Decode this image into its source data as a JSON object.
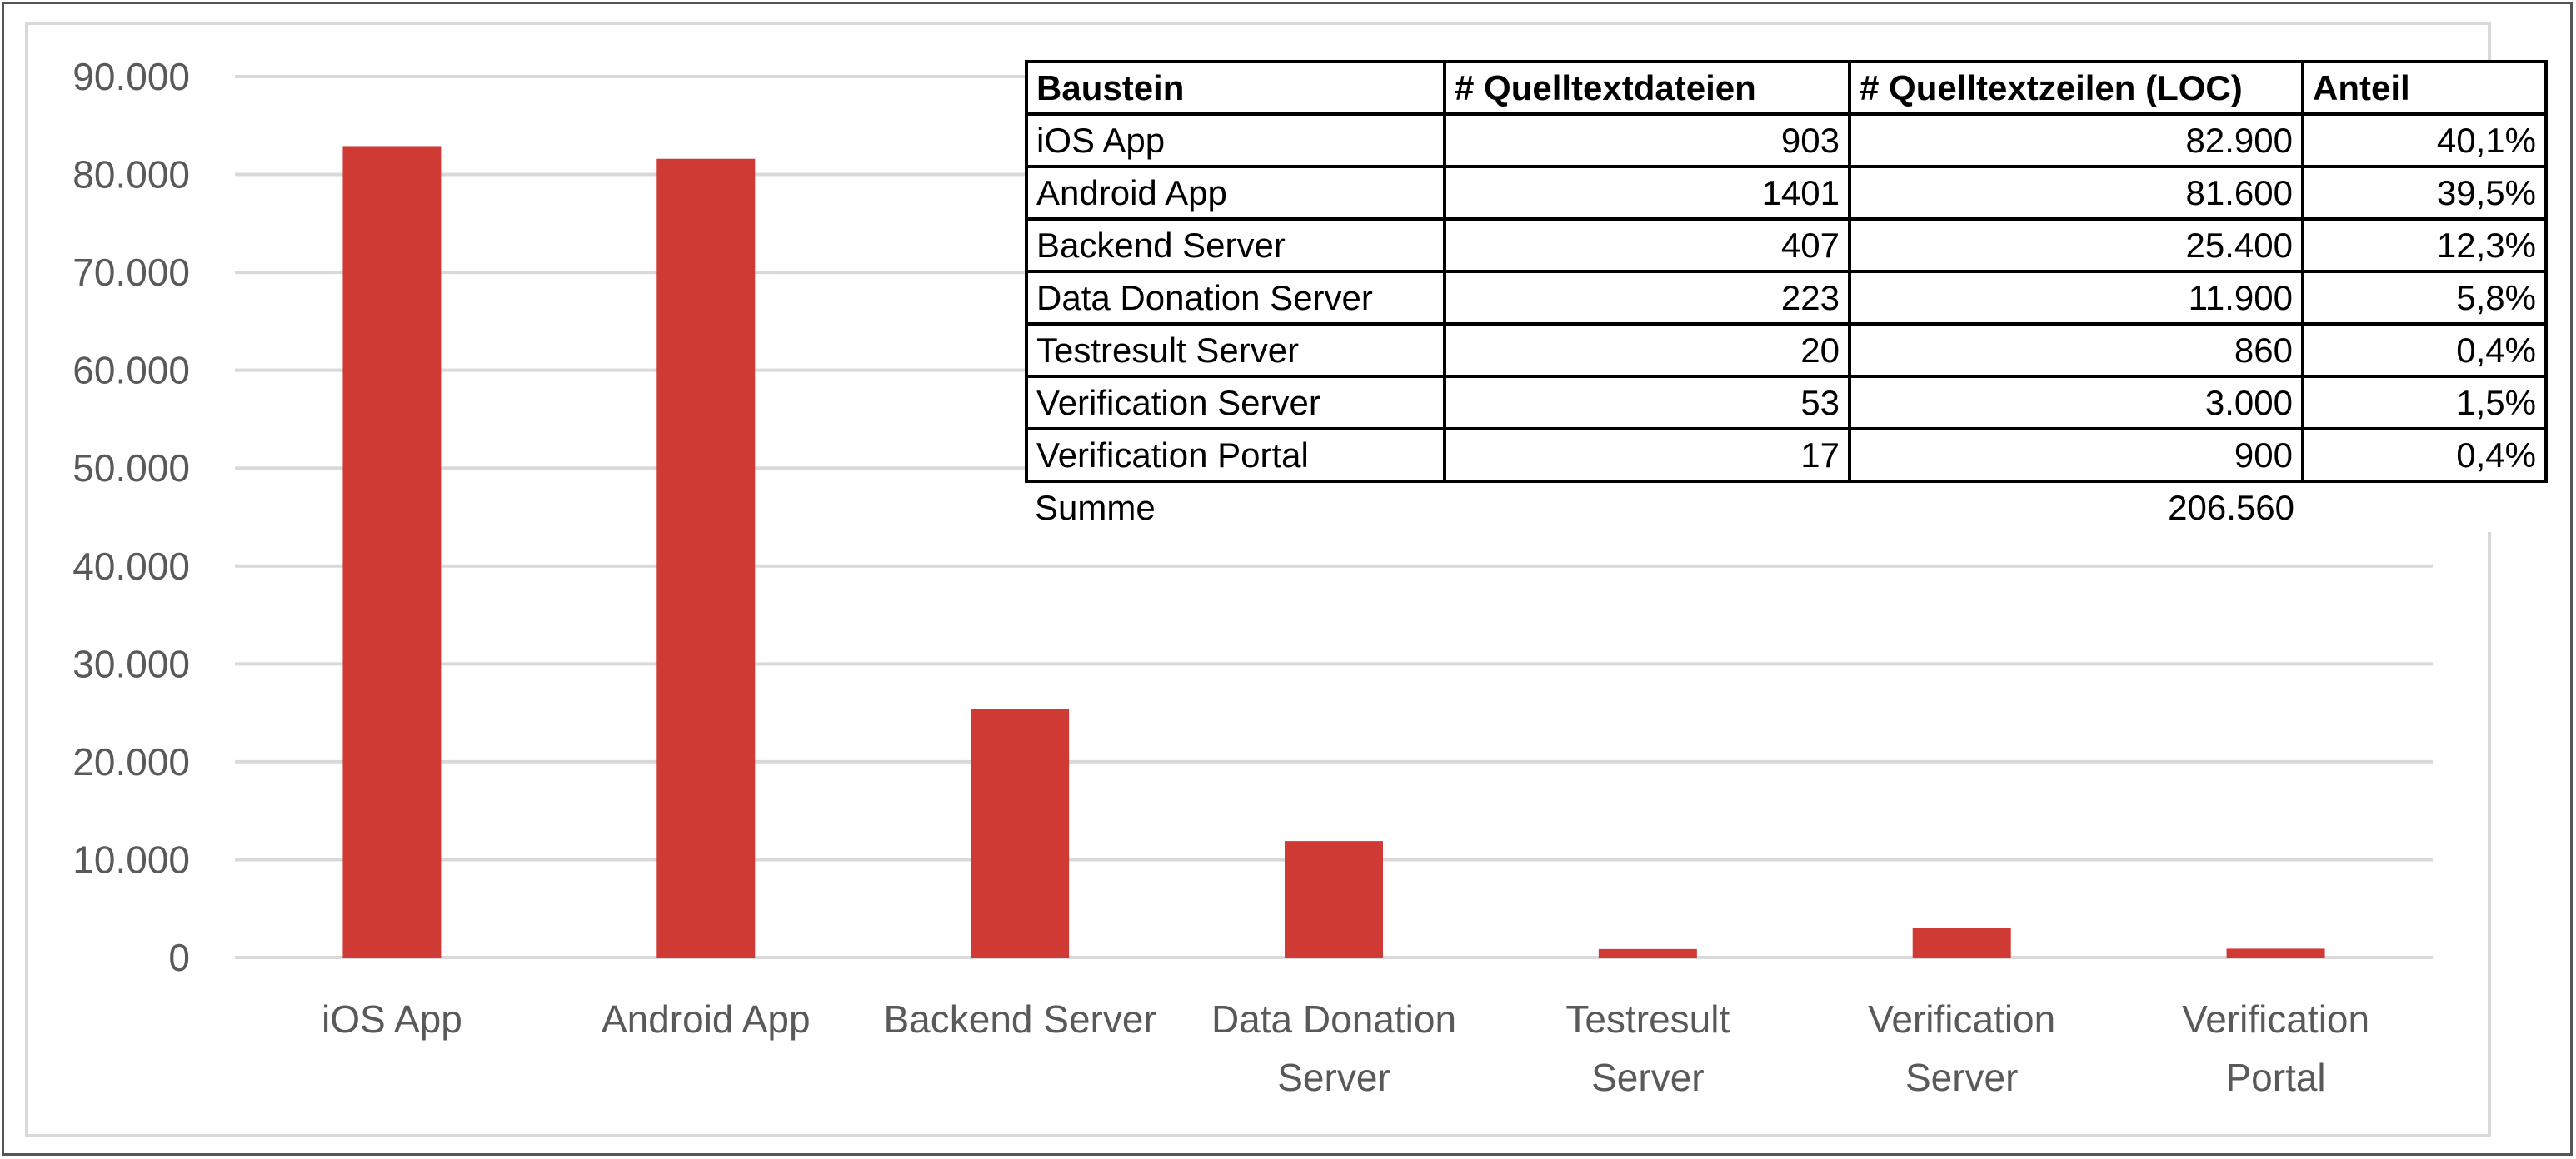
{
  "chart_data": {
    "type": "bar",
    "categories": [
      [
        "iOS App"
      ],
      [
        "Android App"
      ],
      [
        "Backend Server"
      ],
      [
        "Data Donation",
        "Server"
      ],
      [
        "Testresult",
        "Server"
      ],
      [
        "Verification",
        "Server"
      ],
      [
        "Verification",
        "Portal"
      ]
    ],
    "values": [
      82900,
      81600,
      25400,
      11900,
      860,
      3000,
      900
    ],
    "ylim": [
      0,
      90000
    ],
    "yticks": [
      "0",
      "10.000",
      "20.000",
      "30.000",
      "40.000",
      "50.000",
      "60.000",
      "70.000",
      "80.000",
      "90.000"
    ],
    "grid": true,
    "bar_color": "#d03a35",
    "grid_color": "#d9d9d9"
  },
  "table": {
    "headers": [
      "Baustein",
      "# Quelltextdateien",
      "# Quelltextzeilen (LOC)",
      "Anteil"
    ],
    "rows": [
      [
        "iOS App",
        "903",
        "82.900",
        "40,1%"
      ],
      [
        "Android App",
        "1401",
        "81.600",
        "39,5%"
      ],
      [
        "Backend Server",
        "407",
        "25.400",
        "12,3%"
      ],
      [
        "Data Donation Server",
        "223",
        "11.900",
        "5,8%"
      ],
      [
        "Testresult Server",
        "20",
        "860",
        "0,4%"
      ],
      [
        "Verification Server",
        "53",
        "3.000",
        "1,5%"
      ],
      [
        "Verification Portal",
        "17",
        "900",
        "0,4%"
      ]
    ],
    "sum_label": "Summe",
    "sum_value": "206.560"
  }
}
